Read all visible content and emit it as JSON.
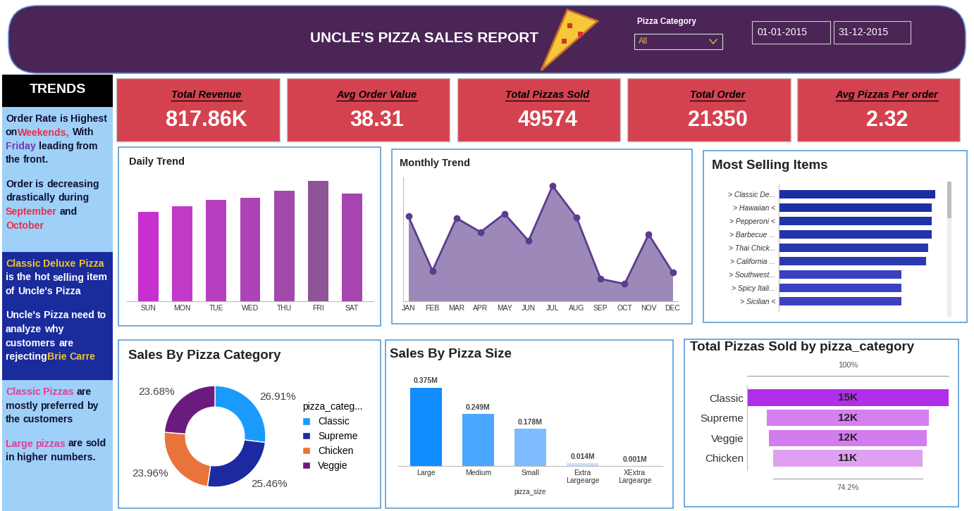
{
  "header": {
    "title": "UNCLE'S PIZZA SALES REPORT",
    "filter_label": "Pizza Category",
    "filter_value": "All",
    "date_from": "01-01-2015",
    "date_to": "31-12-2015"
  },
  "kpis": [
    {
      "label": "Total Revenue",
      "value": "817.86K"
    },
    {
      "label": "Avg Order Value",
      "value": "38.31"
    },
    {
      "label": "Total Pizzas Sold",
      "value": "49574"
    },
    {
      "label": "Total Order",
      "value": "21350"
    },
    {
      "label": "Avg Pizzas Per order",
      "value": "2.32"
    }
  ],
  "trends": {
    "title": "TRENDS",
    "boxes": [
      [
        [
          {
            "text": "Order Rate is Highest on "
          },
          {
            "text": "Weekends,",
            "color": "#e8304a"
          },
          {
            "text": " With "
          },
          {
            "text": "Friday",
            "color": "#6b3fb5"
          },
          {
            "text": " leading from the front."
          }
        ],
        [
          {
            "text": "Order is decreasing drastically during "
          },
          {
            "text": "September",
            "color": "#e8304a"
          },
          {
            "text": " and "
          },
          {
            "text": "October",
            "color": "#e8304a"
          }
        ]
      ],
      [
        [
          {
            "text": "Classic Deluxe Pizza",
            "color": "#f2c12e"
          },
          {
            "text": " is the hot selling item of Uncle's Pizza"
          }
        ],
        [
          {
            "text": "Uncle's Pizza need to analyze why customers are rejecting "
          },
          {
            "text": "Brie Carre",
            "color": "#f2c12e"
          }
        ]
      ],
      [
        [
          {
            "text": "Classic Pizzas",
            "color": "#e0409a"
          },
          {
            "text": " are mostly preferred by the customers"
          }
        ],
        [
          {
            "text": "Large pizzas",
            "color": "#e0409a"
          },
          {
            "text": " are sold in higher numbers."
          }
        ]
      ]
    ]
  },
  "chart_data": [
    {
      "type": "bar",
      "title": "Daily Trend",
      "categories": [
        "SUN",
        "MON",
        "TUE",
        "WED",
        "THU",
        "FRI",
        "SAT"
      ],
      "values": [
        2624,
        2794,
        2973,
        3024,
        3239,
        3538,
        3158
      ],
      "colors": [
        "#c82fd0",
        "#c23bc8",
        "#b840c0",
        "#ad43b5",
        "#a249ab",
        "#8d5595",
        "#a745b0"
      ],
      "tick_labels": "x"
    },
    {
      "type": "area",
      "title": "Monthly Trend",
      "categories": [
        "JAN",
        "FEB",
        "MAR",
        "APR",
        "MAY",
        "JUN",
        "JUL",
        "AUG",
        "SEP",
        "OCT",
        "NOV",
        "DEC"
      ],
      "values": [
        1845,
        1685,
        1840,
        1799,
        1853,
        1773,
        1935,
        1841,
        1661,
        1646,
        1792,
        1680
      ],
      "ylim": [
        1595,
        1960
      ],
      "color": "#5a3b8c",
      "marker": "o",
      "tick_labels": "x"
    },
    {
      "type": "bar",
      "title": "Most Selling Items",
      "orientation": "horizontal",
      "categories": [
        "> Classic De...",
        "> Hawaiian <",
        "> Pepperoni <",
        "> Barbecue ...",
        "> Thai Chick...",
        "> California ...",
        "> Southwest...",
        "> Spicy Itali...",
        "> Sicilian <"
      ],
      "values": [
        2450,
        2400,
        2400,
        2400,
        2340,
        2310,
        1920,
        1920,
        1920
      ],
      "colors": [
        "#1c2ea3",
        "#1e30a6",
        "#2032a8",
        "#2234aa",
        "#2636ad",
        "#2a39b0",
        "#3a3fbf",
        "#3c41c0",
        "#3d42c1"
      ],
      "tick_labels": "y"
    },
    {
      "type": "pie",
      "title": "Sales By Pizza Category",
      "categories": [
        "Classic",
        "Supreme",
        "Chicken",
        "Veggie"
      ],
      "values": [
        26.91,
        25.46,
        23.96,
        23.68
      ],
      "value_labels": [
        "26.91%",
        "25.46%",
        "23.96%",
        "23.68%"
      ],
      "colors": [
        "#1a9bfc",
        "#1b2aa0",
        "#e8743b",
        "#6b1a7e"
      ],
      "legend_title": "pizza_categ...",
      "legend": "right",
      "data_labels": true,
      "tick_labels": false
    },
    {
      "type": "bar",
      "title": "Sales By Pizza Size",
      "x_label": "pizza_size",
      "categories": [
        "Large",
        "Medium",
        "Small",
        "Extra Largearge",
        "XExtra Largearge"
      ],
      "values": [
        0.375,
        0.249,
        0.178,
        0.014,
        0.001
      ],
      "value_labels": [
        "0.375M",
        "0.249M",
        "0.178M",
        "0.014M",
        "0.001M"
      ],
      "colors": [
        "#118dff",
        "#4ba6ff",
        "#7dbdff",
        "#c6e1ff",
        "#e8f2ff"
      ],
      "data_labels": true,
      "tick_labels": "x"
    },
    {
      "type": "funnel",
      "title": "Total Pizzas Sold by pizza_category",
      "categories": [
        "Classic",
        "Supreme",
        "Veggie",
        "Chicken"
      ],
      "values": [
        14888,
        11987,
        11649,
        11050
      ],
      "value_labels": [
        "15K",
        "12K",
        "12K",
        "11K"
      ],
      "annotations": [
        "100%",
        "74.2%"
      ],
      "colors": [
        "#b02ee8",
        "#d57ff0",
        "#d37cef",
        "#dfa0f2"
      ],
      "data_labels": true,
      "tick_labels": "y"
    }
  ]
}
